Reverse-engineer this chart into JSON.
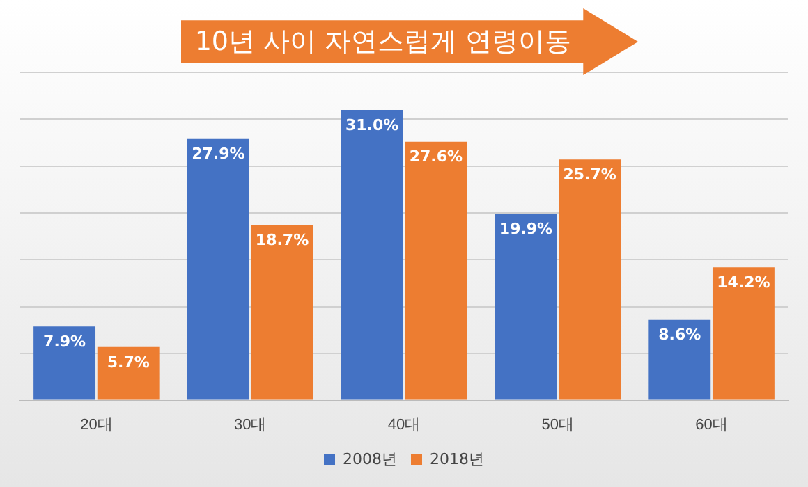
{
  "chart_data": {
    "type": "bar",
    "title": "10년 사이 자연스럽게 연령이동",
    "categories": [
      "20대",
      "30대",
      "40대",
      "50대",
      "60대"
    ],
    "series": [
      {
        "name": "2008년",
        "color": "#4472c4",
        "values": [
          7.9,
          27.9,
          31.0,
          19.9,
          8.6
        ],
        "value_labels": [
          "7.9%",
          "27.9%",
          "31.0%",
          "19.9%",
          "8.6%"
        ]
      },
      {
        "name": "2018년",
        "color": "#ed7d31",
        "values": [
          5.7,
          18.7,
          27.6,
          25.7,
          14.2
        ],
        "value_labels": [
          "5.7%",
          "18.7%",
          "27.6%",
          "25.7%",
          "14.2%"
        ]
      }
    ],
    "grid": "y",
    "legend": "bottom",
    "tick_labels": "x"
  }
}
